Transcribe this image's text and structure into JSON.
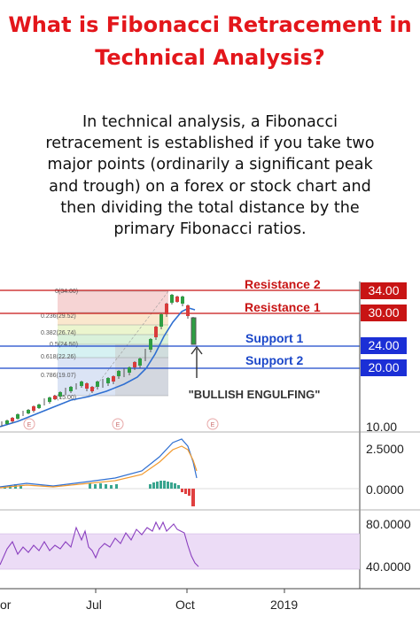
{
  "title_line1": "What is Fibonacci Retracement in",
  "title_line2": "Technical Analysis?",
  "body_lines": [
    "In technical analysis, a Fibonacci",
    "retracement is established if you take two",
    "major points (ordinarily a significant peak",
    "and trough) on a forex or stock chart and",
    "then dividing the total distance by the",
    "primary Fibonacci ratios."
  ],
  "chart": {
    "levels": [
      {
        "label": "Resistance 2",
        "value": "34.00",
        "color": "#c81414"
      },
      {
        "label": "Resistance 1",
        "value": "30.00",
        "color": "#c81414"
      },
      {
        "label": "Support 1",
        "value": "24.00",
        "color": "#1b47c9"
      },
      {
        "label": "Support 2",
        "value": "20.00",
        "color": "#1b47c9"
      }
    ],
    "fib_labels": [
      "0(34.00)",
      "0.236(29.52)",
      "0.382(26.74)",
      "0.5(24.50)",
      "0.618(22.26)",
      "0.786(19.07)",
      "1(15.00)"
    ],
    "annotation": "\"BULLISH ENGULFING\"",
    "price_axis_bottom": "10.00",
    "macd_axis": [
      "2.5000",
      "0.0000"
    ],
    "rsi_axis": [
      "80.0000",
      "40.0000"
    ],
    "x_labels": [
      "or",
      "Jul",
      "Oct",
      "2019"
    ],
    "event_marker": "E"
  }
}
